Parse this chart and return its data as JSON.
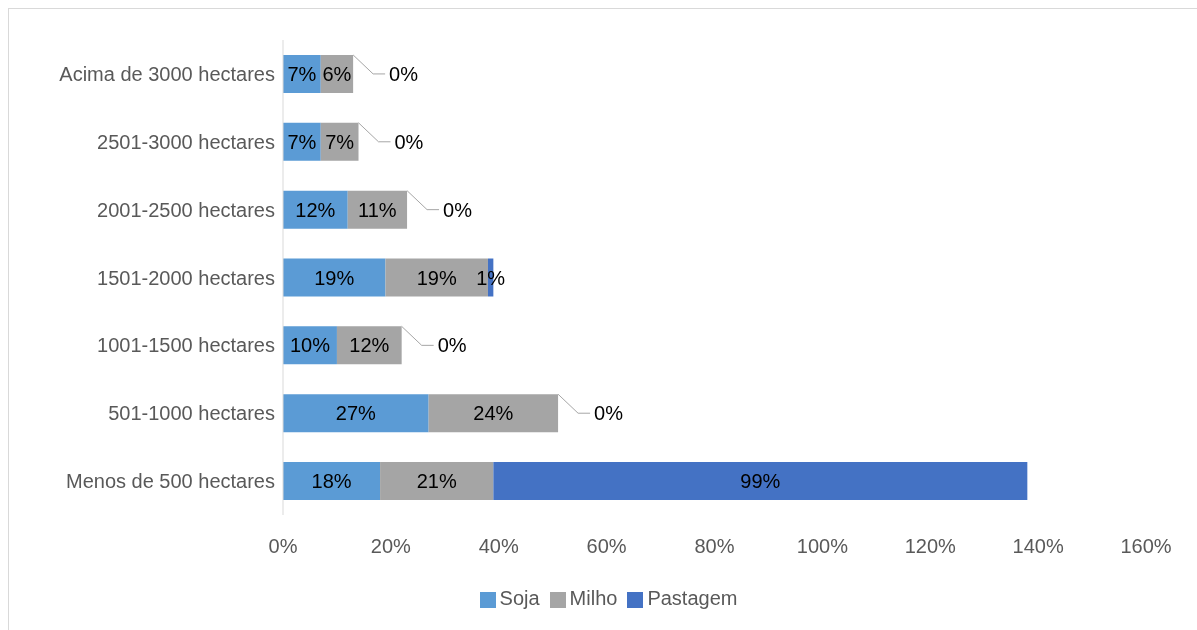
{
  "chart_data": {
    "type": "bar",
    "orientation": "horizontal",
    "stacked": true,
    "categories": [
      "Acima de 3000 hectares",
      "2501-3000 hectares",
      "2001-2500 hectares",
      "1501-2000 hectares",
      "1001-1500 hectares",
      "501-1000 hectares",
      "Menos de 500 hectares"
    ],
    "series": [
      {
        "name": "Soja",
        "color": "#5b9bd5",
        "values": [
          7,
          7,
          12,
          19,
          10,
          27,
          18
        ],
        "value_labels": [
          "7%",
          "7%",
          "12%",
          "19%",
          "10%",
          "27%",
          "18%"
        ]
      },
      {
        "name": "Milho",
        "color": "#a5a5a5",
        "values": [
          6,
          7,
          11,
          19,
          12,
          24,
          21
        ],
        "value_labels": [
          "6%",
          "7%",
          "11%",
          "19%",
          "12%",
          "24%",
          "21%"
        ]
      },
      {
        "name": "Pastagem",
        "color": "#4472c4",
        "values": [
          0,
          0,
          0,
          1,
          0,
          0,
          99
        ],
        "value_labels": [
          "0%",
          "0%",
          "0%",
          "1%",
          "0%",
          "0%",
          "99%"
        ]
      }
    ],
    "xlim": [
      0,
      160
    ],
    "xticks": [
      {
        "value": 0,
        "label": "0%"
      },
      {
        "value": 20,
        "label": "20%"
      },
      {
        "value": 40,
        "label": "40%"
      },
      {
        "value": 60,
        "label": "60%"
      },
      {
        "value": 80,
        "label": "80%"
      },
      {
        "value": 100,
        "label": "100%"
      },
      {
        "value": 120,
        "label": "120%"
      },
      {
        "value": 140,
        "label": "140%"
      },
      {
        "value": 160,
        "label": "160%"
      }
    ],
    "legend": "bottom"
  }
}
